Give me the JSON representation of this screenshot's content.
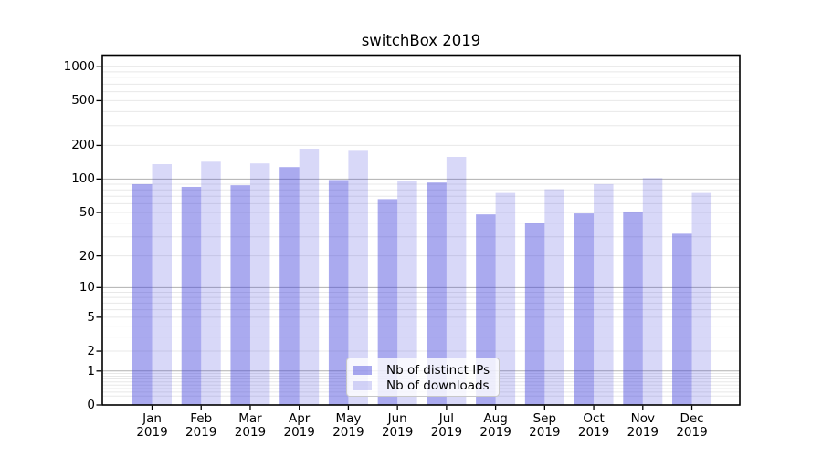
{
  "chart_data": {
    "type": "bar",
    "title": "switchBox 2019",
    "categories": [
      "Jan",
      "Feb",
      "Mar",
      "Apr",
      "May",
      "Jun",
      "Jul",
      "Aug",
      "Sep",
      "Oct",
      "Nov",
      "Dec"
    ],
    "x_tick_second_line": "2019",
    "series": [
      {
        "name": "Nb of distinct IPs",
        "color": "rgba(70,70,220,0.46)",
        "values": [
          90,
          85,
          88,
          128,
          98,
          66,
          93,
          48,
          40,
          49,
          51,
          32
        ]
      },
      {
        "name": "Nb of downloads",
        "color": "rgba(70,70,220,0.21)",
        "values": [
          136,
          143,
          138,
          187,
          179,
          96,
          158,
          75,
          81,
          90,
          102,
          75
        ]
      }
    ],
    "yticks": [
      0,
      1,
      2,
      5,
      10,
      20,
      50,
      100,
      200,
      500,
      1000
    ],
    "ylim": [
      0,
      1270
    ],
    "y_scale": "symlog (position proportional to ln(1+value))",
    "grid": true,
    "legend_position": "lower center",
    "colors": {
      "grid_major": "#b0b0b0",
      "grid_minor": "#e8e8e8",
      "axis": "#000000",
      "background": "#ffffff"
    }
  }
}
